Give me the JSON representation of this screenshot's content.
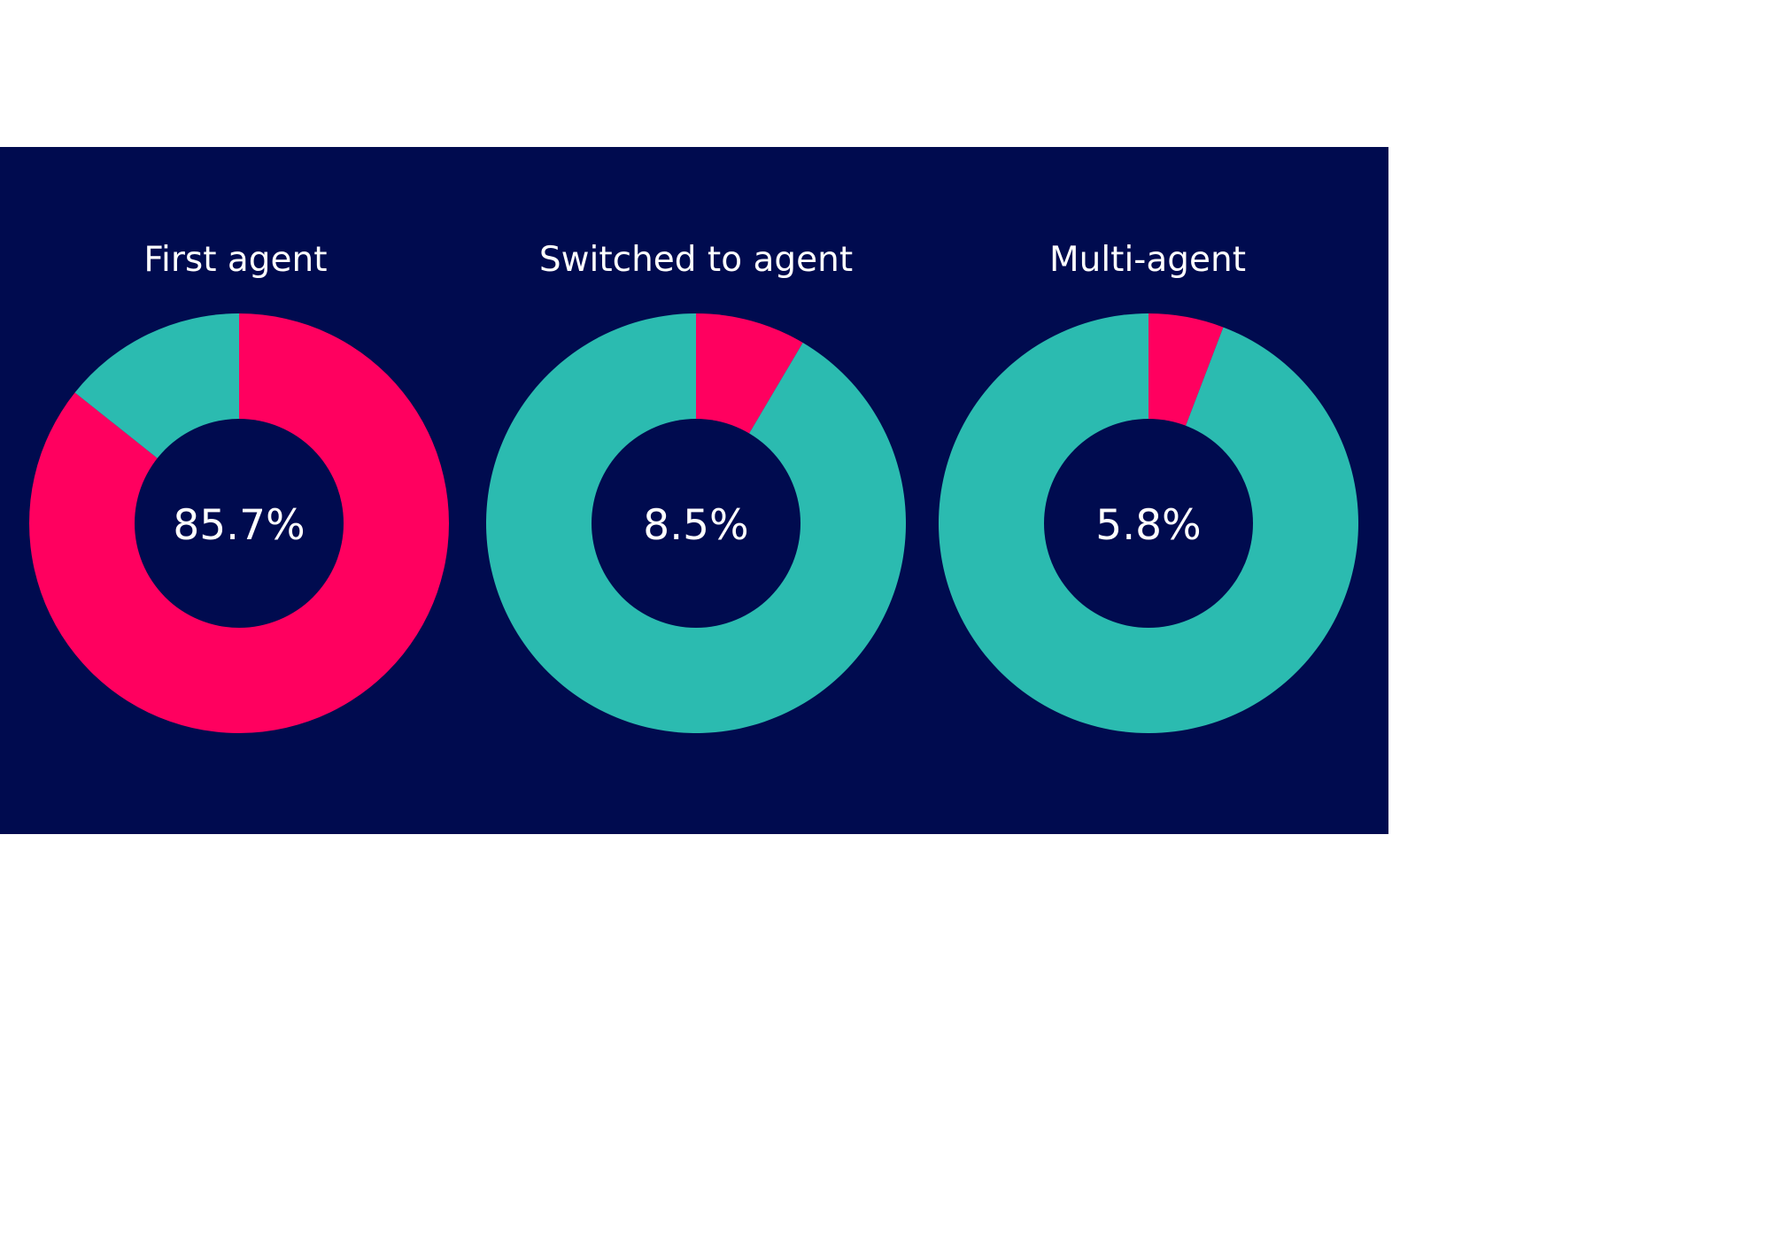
{
  "colors": {
    "background": "#000b4f",
    "highlight": "#ff005f",
    "remainder": "#2bbbb0",
    "text": "#ffffff"
  },
  "chart_data": [
    {
      "type": "pie",
      "title": "First agent",
      "center_label": "85.7%",
      "slices": [
        {
          "value": 85.7,
          "color": "#ff005f"
        },
        {
          "value": 14.3,
          "color": "#2bbbb0"
        }
      ]
    },
    {
      "type": "pie",
      "title": "Switched to agent",
      "center_label": "8.5%",
      "slices": [
        {
          "value": 8.5,
          "color": "#ff005f"
        },
        {
          "value": 91.5,
          "color": "#2bbbb0"
        }
      ]
    },
    {
      "type": "pie",
      "title": "Multi-agent",
      "center_label": "5.8%",
      "slices": [
        {
          "value": 5.8,
          "color": "#ff005f"
        },
        {
          "value": 94.2,
          "color": "#2bbbb0"
        }
      ]
    }
  ]
}
